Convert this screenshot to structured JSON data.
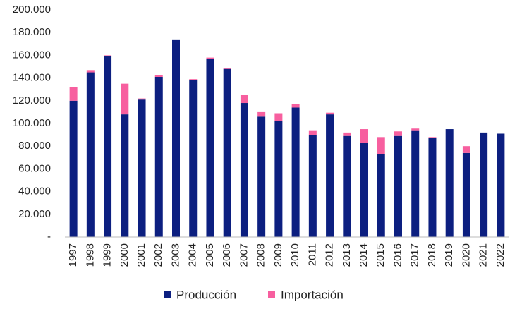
{
  "chart_data": {
    "type": "stacked_bar",
    "categories": [
      "1997",
      "1998",
      "1999",
      "2000",
      "2001",
      "2002",
      "2003",
      "2004",
      "2005",
      "2006",
      "2007",
      "2008",
      "2009",
      "2010",
      "2011",
      "2012",
      "2013",
      "2014",
      "2015",
      "2016",
      "2017",
      "2018",
      "2019",
      "2020",
      "2021",
      "2022"
    ],
    "series": [
      {
        "name": "Producción",
        "color": "#0c1f80",
        "values": [
          120000,
          145000,
          159000,
          108000,
          121000,
          141000,
          174000,
          138000,
          157000,
          148000,
          118000,
          106000,
          102000,
          114000,
          90000,
          108000,
          89000,
          83000,
          73000,
          89000,
          94000,
          87000,
          95000,
          74000,
          92000,
          91000
        ]
      },
      {
        "name": "Importación",
        "color": "#f75f9f",
        "values": [
          12000,
          2000,
          1000,
          27000,
          1000,
          1500,
          0,
          1000,
          1000,
          1000,
          7000,
          4000,
          7000,
          3000,
          4000,
          1500,
          3000,
          12000,
          15000,
          4000,
          1500,
          1000,
          0,
          6000,
          0,
          0
        ]
      }
    ],
    "ylim": [
      0,
      200000
    ],
    "yticks": [
      {
        "value": 0,
        "label": "-"
      },
      {
        "value": 20000,
        "label": "20.000"
      },
      {
        "value": 40000,
        "label": "40.000"
      },
      {
        "value": 60000,
        "label": "60.000"
      },
      {
        "value": 80000,
        "label": "80.000"
      },
      {
        "value": 100000,
        "label": "100.000"
      },
      {
        "value": 120000,
        "label": "120.000"
      },
      {
        "value": 140000,
        "label": "140.000"
      },
      {
        "value": 160000,
        "label": "160.000"
      },
      {
        "value": 180000,
        "label": "180.000"
      },
      {
        "value": 200000,
        "label": "200.000"
      }
    ],
    "grid": false,
    "legend": "bottom"
  }
}
